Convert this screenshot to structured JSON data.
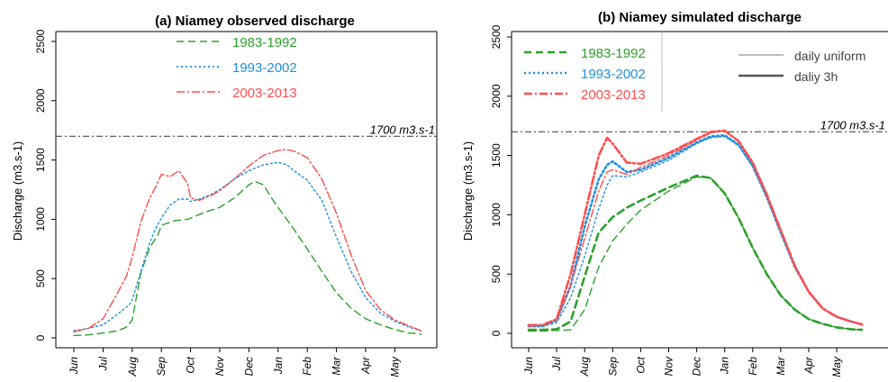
{
  "chart_data": [
    {
      "type": "line",
      "title": "(a) Niamey observed discharge",
      "ylabel": "Discharge (m3.s-1)",
      "xlabel": "",
      "ylim": [
        0,
        2500
      ],
      "yticks": [
        0,
        500,
        1000,
        1500,
        2000,
        2500
      ],
      "months": [
        "Jun",
        "Jul",
        "Aug",
        "Sep",
        "Oct",
        "Nov",
        "Dec",
        "Jan",
        "Feb",
        "Mar",
        "Apr",
        "May"
      ],
      "reference_line": {
        "value": 1700,
        "label": "1700 m3.s-1"
      },
      "legend_position": "top-center",
      "series": [
        {
          "name": "1983-1992",
          "color": "#2ca02c",
          "dash": "dashed",
          "width": "thin",
          "points": [
            [
              0,
              20
            ],
            [
              0.5,
              25
            ],
            [
              1,
              40
            ],
            [
              1.5,
              60
            ],
            [
              1.8,
              90
            ],
            [
              2,
              150
            ],
            [
              2.3,
              550
            ],
            [
              2.6,
              760
            ],
            [
              2.9,
              880
            ],
            [
              3,
              950
            ],
            [
              3.5,
              990
            ],
            [
              3.9,
              1000
            ],
            [
              4,
              1010
            ],
            [
              4.5,
              1060
            ],
            [
              5,
              1100
            ],
            [
              5.5,
              1180
            ],
            [
              6,
              1290
            ],
            [
              6.2,
              1320
            ],
            [
              6.5,
              1290
            ],
            [
              6.8,
              1170
            ],
            [
              7,
              1100
            ],
            [
              7.5,
              930
            ],
            [
              8,
              750
            ],
            [
              8.5,
              560
            ],
            [
              9,
              380
            ],
            [
              9.5,
              250
            ],
            [
              10,
              160
            ],
            [
              10.5,
              110
            ],
            [
              11,
              70
            ],
            [
              11.5,
              40
            ],
            [
              11.8,
              35
            ],
            [
              11.9,
              30
            ]
          ]
        },
        {
          "name": "1993-2002",
          "color": "#1f8fe0",
          "dash": "dotted",
          "width": "thin",
          "points": [
            [
              0,
              60
            ],
            [
              0.5,
              80
            ],
            [
              1,
              110
            ],
            [
              1.5,
              200
            ],
            [
              1.9,
              280
            ],
            [
              2,
              320
            ],
            [
              2.3,
              560
            ],
            [
              2.6,
              800
            ],
            [
              2.8,
              920
            ],
            [
              3,
              1010
            ],
            [
              3.3,
              1120
            ],
            [
              3.6,
              1170
            ],
            [
              3.9,
              1170
            ],
            [
              4,
              1150
            ],
            [
              4.3,
              1170
            ],
            [
              4.7,
              1210
            ],
            [
              5,
              1250
            ],
            [
              5.5,
              1340
            ],
            [
              6,
              1410
            ],
            [
              6.5,
              1460
            ],
            [
              7,
              1480
            ],
            [
              7.3,
              1460
            ],
            [
              7.6,
              1400
            ],
            [
              8,
              1330
            ],
            [
              8.5,
              1160
            ],
            [
              9,
              850
            ],
            [
              9.5,
              560
            ],
            [
              10,
              340
            ],
            [
              10.5,
              210
            ],
            [
              11,
              140
            ],
            [
              11.5,
              90
            ],
            [
              11.9,
              60
            ]
          ]
        },
        {
          "name": "2003-2013",
          "color": "#ff4d4d",
          "dash": "dashdot",
          "width": "thin",
          "points": [
            [
              0,
              50
            ],
            [
              0.5,
              80
            ],
            [
              1,
              160
            ],
            [
              1.5,
              380
            ],
            [
              1.8,
              520
            ],
            [
              2,
              680
            ],
            [
              2.3,
              980
            ],
            [
              2.6,
              1180
            ],
            [
              2.8,
              1270
            ],
            [
              3,
              1380
            ],
            [
              3.3,
              1360
            ],
            [
              3.6,
              1410
            ],
            [
              3.9,
              1300
            ],
            [
              4,
              1180
            ],
            [
              4.3,
              1160
            ],
            [
              4.7,
              1200
            ],
            [
              5,
              1240
            ],
            [
              5.5,
              1340
            ],
            [
              6,
              1450
            ],
            [
              6.5,
              1540
            ],
            [
              7,
              1580
            ],
            [
              7.3,
              1590
            ],
            [
              7.6,
              1570
            ],
            [
              8,
              1520
            ],
            [
              8.5,
              1340
            ],
            [
              9,
              1050
            ],
            [
              9.5,
              700
            ],
            [
              10,
              400
            ],
            [
              10.5,
              240
            ],
            [
              11,
              150
            ],
            [
              11.5,
              100
            ],
            [
              11.9,
              60
            ]
          ]
        }
      ]
    },
    {
      "type": "line",
      "title": "(b) Niamey simulated discharge",
      "ylabel": "Discharge (m3.s-1)",
      "xlabel": "",
      "ylim": [
        0,
        2500
      ],
      "yticks": [
        0,
        500,
        1000,
        1500,
        2000,
        2500
      ],
      "months": [
        "Jun",
        "Jul",
        "Aug",
        "Sep",
        "Oct",
        "Nov",
        "Dec",
        "Jan",
        "Feb",
        "Mar",
        "Apr",
        "May"
      ],
      "reference_line": {
        "value": 1700,
        "label": "1700 m3.s-1"
      },
      "legend_position": "top-left",
      "line_types": [
        {
          "label": "daily uniform",
          "width": "thin"
        },
        {
          "label": "daliy 3h",
          "width": "thick"
        }
      ],
      "series": [
        {
          "name": "1983-1992",
          "color": "#2ca02c",
          "dash": "dashed",
          "width": "thin",
          "points": [
            [
              0,
              20
            ],
            [
              0.5,
              20
            ],
            [
              1,
              25
            ],
            [
              1.5,
              30
            ],
            [
              2,
              200
            ],
            [
              2.5,
              560
            ],
            [
              3,
              780
            ],
            [
              3.5,
              920
            ],
            [
              4,
              1040
            ],
            [
              5,
              1200
            ],
            [
              6,
              1320
            ],
            [
              6.5,
              1310
            ],
            [
              7,
              1180
            ],
            [
              7.5,
              970
            ],
            [
              8,
              720
            ],
            [
              8.5,
              500
            ],
            [
              9,
              320
            ],
            [
              9.5,
              200
            ],
            [
              10,
              120
            ],
            [
              10.5,
              80
            ],
            [
              11,
              50
            ],
            [
              11.5,
              35
            ],
            [
              11.9,
              30
            ]
          ]
        },
        {
          "name": "1983-1992",
          "color": "#2ca02c",
          "dash": "dashed",
          "width": "thick",
          "points": [
            [
              0,
              30
            ],
            [
              0.5,
              30
            ],
            [
              1,
              35
            ],
            [
              1.5,
              100
            ],
            [
              2,
              480
            ],
            [
              2.5,
              850
            ],
            [
              3,
              980
            ],
            [
              3.5,
              1060
            ],
            [
              4,
              1120
            ],
            [
              5,
              1230
            ],
            [
              6,
              1330
            ],
            [
              6.5,
              1310
            ],
            [
              7,
              1180
            ],
            [
              7.5,
              970
            ],
            [
              8,
              720
            ],
            [
              8.5,
              500
            ],
            [
              9,
              320
            ],
            [
              9.5,
              200
            ],
            [
              10,
              120
            ],
            [
              10.5,
              80
            ],
            [
              11,
              50
            ],
            [
              11.5,
              35
            ],
            [
              11.9,
              30
            ]
          ]
        },
        {
          "name": "1993-2002",
          "color": "#1f8fe0",
          "dash": "dotted",
          "width": "thin",
          "points": [
            [
              0,
              60
            ],
            [
              0.5,
              60
            ],
            [
              1,
              90
            ],
            [
              1.5,
              300
            ],
            [
              2,
              650
            ],
            [
              2.5,
              1050
            ],
            [
              2.8,
              1250
            ],
            [
              3,
              1330
            ],
            [
              3.5,
              1320
            ],
            [
              4,
              1360
            ],
            [
              5,
              1460
            ],
            [
              6,
              1600
            ],
            [
              6.5,
              1650
            ],
            [
              7,
              1660
            ],
            [
              7.5,
              1580
            ],
            [
              8,
              1410
            ],
            [
              8.5,
              1150
            ],
            [
              9,
              850
            ],
            [
              9.5,
              560
            ],
            [
              10,
              350
            ],
            [
              10.5,
              210
            ],
            [
              11,
              140
            ],
            [
              11.5,
              100
            ],
            [
              11.9,
              75
            ]
          ]
        },
        {
          "name": "1993-2002",
          "color": "#1f8fe0",
          "dash": "dotted",
          "width": "thick",
          "points": [
            [
              0,
              60
            ],
            [
              0.5,
              60
            ],
            [
              1,
              110
            ],
            [
              1.5,
              400
            ],
            [
              2,
              900
            ],
            [
              2.5,
              1300
            ],
            [
              2.8,
              1420
            ],
            [
              3,
              1450
            ],
            [
              3.5,
              1360
            ],
            [
              4,
              1380
            ],
            [
              5,
              1480
            ],
            [
              6,
              1610
            ],
            [
              6.5,
              1660
            ],
            [
              7,
              1670
            ],
            [
              7.5,
              1590
            ],
            [
              8,
              1410
            ],
            [
              8.5,
              1150
            ],
            [
              9,
              850
            ],
            [
              9.5,
              560
            ],
            [
              10,
              350
            ],
            [
              10.5,
              210
            ],
            [
              11,
              140
            ],
            [
              11.5,
              100
            ],
            [
              11.9,
              75
            ]
          ]
        },
        {
          "name": "2003-2013",
          "color": "#ff4d4d",
          "dash": "dashdot",
          "width": "thin",
          "points": [
            [
              0,
              60
            ],
            [
              0.5,
              70
            ],
            [
              1,
              110
            ],
            [
              1.5,
              400
            ],
            [
              2,
              800
            ],
            [
              2.5,
              1200
            ],
            [
              2.8,
              1360
            ],
            [
              3,
              1380
            ],
            [
              3.5,
              1340
            ],
            [
              4,
              1400
            ],
            [
              5,
              1500
            ],
            [
              6,
              1630
            ],
            [
              6.5,
              1690
            ],
            [
              7,
              1710
            ],
            [
              7.5,
              1620
            ],
            [
              8,
              1440
            ],
            [
              8.5,
              1170
            ],
            [
              9,
              870
            ],
            [
              9.5,
              570
            ],
            [
              10,
              350
            ],
            [
              10.5,
              210
            ],
            [
              11,
              140
            ],
            [
              11.5,
              100
            ],
            [
              11.9,
              75
            ]
          ]
        },
        {
          "name": "2003-2013",
          "color": "#ff4d4d",
          "dash": "dashdot",
          "width": "thick",
          "points": [
            [
              0,
              70
            ],
            [
              0.5,
              70
            ],
            [
              1,
              120
            ],
            [
              1.5,
              500
            ],
            [
              2,
              1000
            ],
            [
              2.5,
              1500
            ],
            [
              2.8,
              1650
            ],
            [
              3,
              1600
            ],
            [
              3.5,
              1440
            ],
            [
              4,
              1430
            ],
            [
              5,
              1520
            ],
            [
              6,
              1640
            ],
            [
              6.5,
              1700
            ],
            [
              7,
              1710
            ],
            [
              7.5,
              1620
            ],
            [
              8,
              1440
            ],
            [
              8.5,
              1170
            ],
            [
              9,
              870
            ],
            [
              9.5,
              570
            ],
            [
              10,
              350
            ],
            [
              10.5,
              210
            ],
            [
              11,
              140
            ],
            [
              11.5,
              100
            ],
            [
              11.9,
              75
            ]
          ]
        }
      ]
    }
  ]
}
